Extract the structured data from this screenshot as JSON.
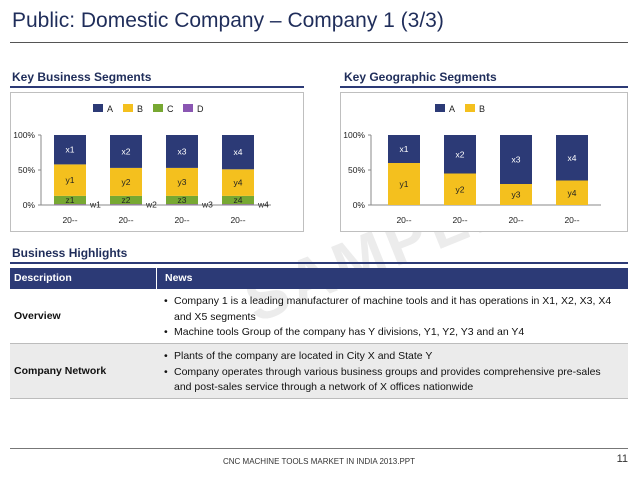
{
  "header": {
    "title": "Public: Domestic Company – Company 1 (3/3)"
  },
  "sections": {
    "business_segments": "Key Business Segments",
    "geographic_segments": "Key Geographic Segments",
    "highlights": "Business Highlights"
  },
  "colors": {
    "navy": "#1f2d5a",
    "blue": "#2c3a76",
    "gold": "#f4c01e",
    "green": "#77a832",
    "purple": "#8a56b2"
  },
  "chart_data": [
    {
      "type": "bar",
      "stacked": true,
      "title": "Key Business Segments",
      "categories": [
        "20--",
        "20--",
        "20--",
        "20--"
      ],
      "legend": [
        "A",
        "B",
        "C",
        "D"
      ],
      "legend_placement": "top",
      "y_ticks": [
        "0%",
        "50%",
        "100%"
      ],
      "ylim": [
        0,
        100
      ],
      "series": [
        {
          "name": "D",
          "labels": [
            "w1",
            "w2",
            "w3",
            "w4"
          ],
          "values": [
            1,
            1,
            1,
            1
          ]
        },
        {
          "name": "C",
          "labels": [
            "z1",
            "z2",
            "z3",
            "z4"
          ],
          "values": [
            12,
            12,
            12,
            12
          ]
        },
        {
          "name": "B",
          "labels": [
            "y1",
            "y2",
            "y3",
            "y4"
          ],
          "values": [
            45,
            40,
            40,
            38
          ]
        },
        {
          "name": "A",
          "labels": [
            "x1",
            "x2",
            "x3",
            "x4"
          ],
          "values": [
            42,
            47,
            47,
            49
          ]
        }
      ]
    },
    {
      "type": "bar",
      "stacked": true,
      "title": "Key Geographic Segments",
      "categories": [
        "20--",
        "20--",
        "20--",
        "20--"
      ],
      "legend": [
        "A",
        "B"
      ],
      "legend_placement": "top",
      "y_ticks": [
        "0%",
        "50%",
        "100%"
      ],
      "ylim": [
        0,
        100
      ],
      "series": [
        {
          "name": "B",
          "labels": [
            "y1",
            "y2",
            "y3",
            "y4"
          ],
          "values": [
            60,
            45,
            30,
            35
          ]
        },
        {
          "name": "A",
          "labels": [
            "x1",
            "x2",
            "x3",
            "x4"
          ],
          "values": [
            40,
            55,
            70,
            65
          ]
        }
      ]
    }
  ],
  "table": {
    "headers": {
      "description": "Description",
      "news": "News"
    },
    "rows": [
      {
        "label": "Overview",
        "bullets": [
          "Company 1 is a leading manufacturer of machine tools and it has operations in X1, X2, X3, X4 and X5 segments",
          "Machine tools Group of the company has Y divisions, Y1, Y2, Y3 and an Y4"
        ]
      },
      {
        "label": "Company Network",
        "bullets": [
          "Plants of the company are located in City X and State Y",
          "Company operates through various business groups and  provides comprehensive pre-sales and post-sales service through a network of X offices nationwide"
        ]
      }
    ]
  },
  "footer": {
    "text": "CNC MACHINE TOOLS MARKET IN INDIA 2013.PPT",
    "page": "11"
  },
  "watermark": "SAMPLE"
}
